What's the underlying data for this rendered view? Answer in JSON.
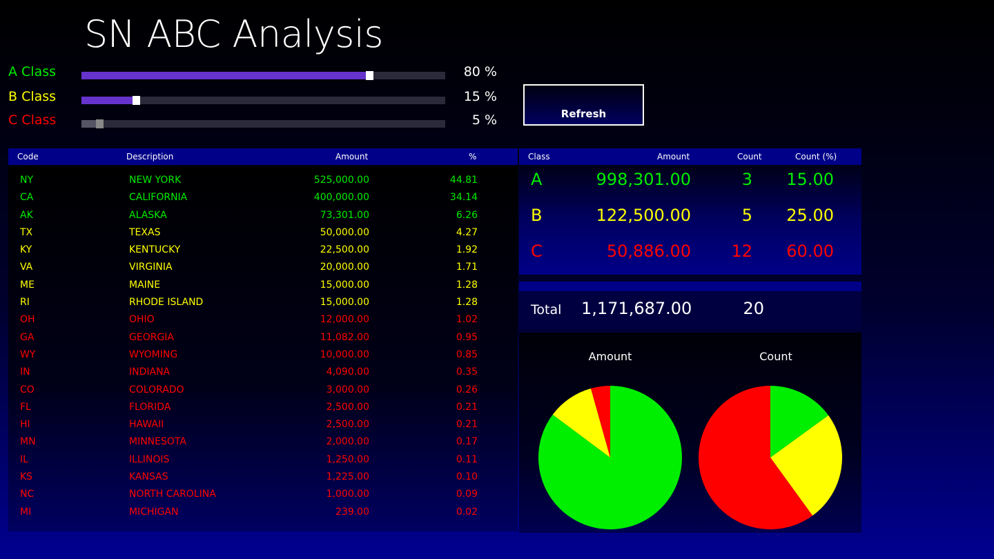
{
  "app": {
    "title": "SN ABC Analysis"
  },
  "colors": {
    "a": "#00ee00",
    "b": "#ffff00",
    "c": "#ff0000"
  },
  "sliders": [
    {
      "label": "A Class",
      "value": "80 %",
      "fraction": 0.8
    },
    {
      "label": "B Class",
      "value": "15 %",
      "fraction": 0.15
    },
    {
      "label": "C Class",
      "value": "5 %",
      "fraction": 0.05
    }
  ],
  "refresh_label": "Refresh",
  "list_headers": {
    "code": "Code",
    "description": "Description",
    "amount": "Amount",
    "percent": "%"
  },
  "rows": [
    {
      "code": "NY",
      "description": "NEW YORK",
      "amount": "525,000.00",
      "percent": "44.81",
      "cls": "a"
    },
    {
      "code": "CA",
      "description": "CALIFORNIA",
      "amount": "400,000.00",
      "percent": "34.14",
      "cls": "a"
    },
    {
      "code": "AK",
      "description": "ALASKA",
      "amount": "73,301.00",
      "percent": "6.26",
      "cls": "a"
    },
    {
      "code": "TX",
      "description": "TEXAS",
      "amount": "50,000.00",
      "percent": "4.27",
      "cls": "b"
    },
    {
      "code": "KY",
      "description": "KENTUCKY",
      "amount": "22,500.00",
      "percent": "1.92",
      "cls": "b"
    },
    {
      "code": "VA",
      "description": "VIRGINIA",
      "amount": "20,000.00",
      "percent": "1.71",
      "cls": "b"
    },
    {
      "code": "ME",
      "description": "MAINE",
      "amount": "15,000.00",
      "percent": "1.28",
      "cls": "b"
    },
    {
      "code": "RI",
      "description": "RHODE ISLAND",
      "amount": "15,000.00",
      "percent": "1.28",
      "cls": "b"
    },
    {
      "code": "OH",
      "description": "OHIO",
      "amount": "12,000.00",
      "percent": "1.02",
      "cls": "c"
    },
    {
      "code": "GA",
      "description": "GEORGIA",
      "amount": "11,082.00",
      "percent": "0.95",
      "cls": "c"
    },
    {
      "code": "WY",
      "description": "WYOMING",
      "amount": "10,000.00",
      "percent": "0.85",
      "cls": "c"
    },
    {
      "code": "IN",
      "description": "INDIANA",
      "amount": "4,090.00",
      "percent": "0.35",
      "cls": "c"
    },
    {
      "code": "CO",
      "description": "COLORADO",
      "amount": "3,000.00",
      "percent": "0.26",
      "cls": "c"
    },
    {
      "code": "FL",
      "description": "FLORIDA",
      "amount": "2,500.00",
      "percent": "0.21",
      "cls": "c"
    },
    {
      "code": "HI",
      "description": "HAWAII",
      "amount": "2,500.00",
      "percent": "0.21",
      "cls": "c"
    },
    {
      "code": "MN",
      "description": "MINNESOTA",
      "amount": "2,000.00",
      "percent": "0.17",
      "cls": "c"
    },
    {
      "code": "IL",
      "description": "ILLINOIS",
      "amount": "1,250.00",
      "percent": "0.11",
      "cls": "c"
    },
    {
      "code": "KS",
      "description": "KANSAS",
      "amount": "1,225.00",
      "percent": "0.10",
      "cls": "c"
    },
    {
      "code": "NC",
      "description": "NORTH CAROLINA",
      "amount": "1,000.00",
      "percent": "0.09",
      "cls": "c"
    },
    {
      "code": "MI",
      "description": "MICHIGAN",
      "amount": "239.00",
      "percent": "0.02",
      "cls": "c"
    }
  ],
  "summary_headers": {
    "class": "Class",
    "amount": "Amount",
    "count": "Count",
    "count_pct": "Count (%)"
  },
  "summary": [
    {
      "class": "A",
      "amount": "998,301.00",
      "count": "3",
      "count_pct": "15.00",
      "cls": "a"
    },
    {
      "class": "B",
      "amount": "122,500.00",
      "count": "5",
      "count_pct": "25.00",
      "cls": "b"
    },
    {
      "class": "C",
      "amount": "50,886.00",
      "count": "12",
      "count_pct": "60.00",
      "cls": "c"
    }
  ],
  "total": {
    "label": "Total",
    "amount": "1,171,687.00",
    "count": "20"
  },
  "chart_data": [
    {
      "type": "pie",
      "title": "Amount",
      "categories": [
        "A",
        "B",
        "C"
      ],
      "values": [
        998301,
        122500,
        50886
      ]
    },
    {
      "type": "pie",
      "title": "Count",
      "categories": [
        "A",
        "B",
        "C"
      ],
      "values": [
        3,
        5,
        12
      ]
    }
  ]
}
